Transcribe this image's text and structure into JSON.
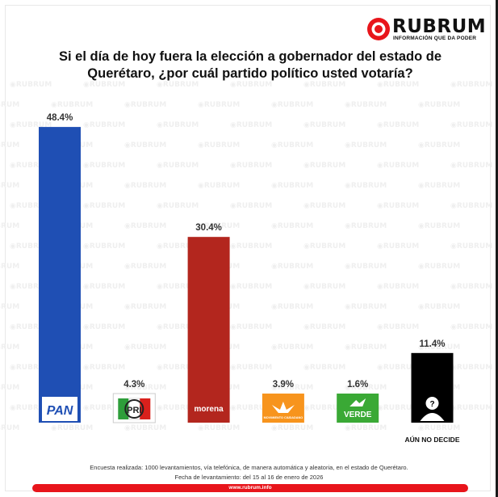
{
  "brand": {
    "name": "RUBRUM",
    "tagline": "INFORMACIÓN QUE DA PODER",
    "watermark": "RUBRUM"
  },
  "title_line1": "Si el día de hoy fuera la elección a gobernador del estado de",
  "title_line2": "Querétaro, ¿por cuál partido político usted votaría?",
  "footer": {
    "line1": "Encuesta realizada: 1000 levantamientos, vía telefónica, de manera automática y aleatoria, en el estado de Querétaro.",
    "line2": "Fecha de levantamiento: del 15 al 16 de enero de 2026",
    "url": "www.rubrum.info"
  },
  "chart_data": {
    "type": "bar",
    "title": "Si el día de hoy fuera la elección a gobernador del estado de Querétaro, ¿por cuál partido político usted votaría?",
    "categories": [
      "PAN",
      "PRI",
      "morena",
      "MC",
      "VERDE",
      "AÚN NO DECIDE"
    ],
    "values": [
      48.4,
      4.3,
      30.4,
      3.9,
      1.6,
      11.4
    ],
    "value_labels": [
      "48.4%",
      "4.3%",
      "30.4%",
      "3.9%",
      "1.6%",
      "11.4%"
    ],
    "category_label_shown": [
      "",
      "",
      "",
      "",
      "",
      "AÚN NO DECIDE"
    ],
    "logo_text": [
      "PAN",
      "PRI",
      "morena",
      "MOVIMIENTO CIUDADANO",
      "VERDE",
      "?"
    ],
    "colors": [
      "#1f4fb4",
      "#ffffff",
      "#b3261e",
      "#f7941d",
      "#3aa935",
      "#000000"
    ],
    "ylim": [
      0,
      50
    ],
    "grid": false,
    "legend": "none"
  }
}
